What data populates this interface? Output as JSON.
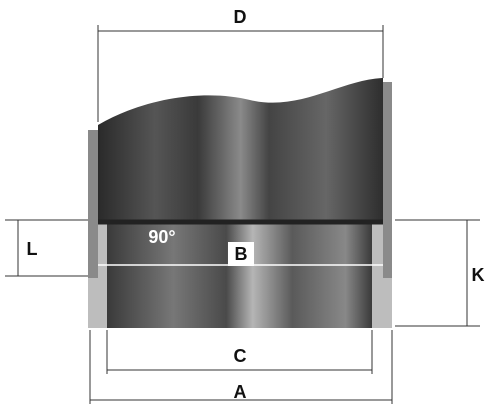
{
  "dimensions": {
    "D": "D",
    "L": "L",
    "B": "B",
    "K": "K",
    "C": "C",
    "A": "A"
  },
  "angle": "90°"
}
